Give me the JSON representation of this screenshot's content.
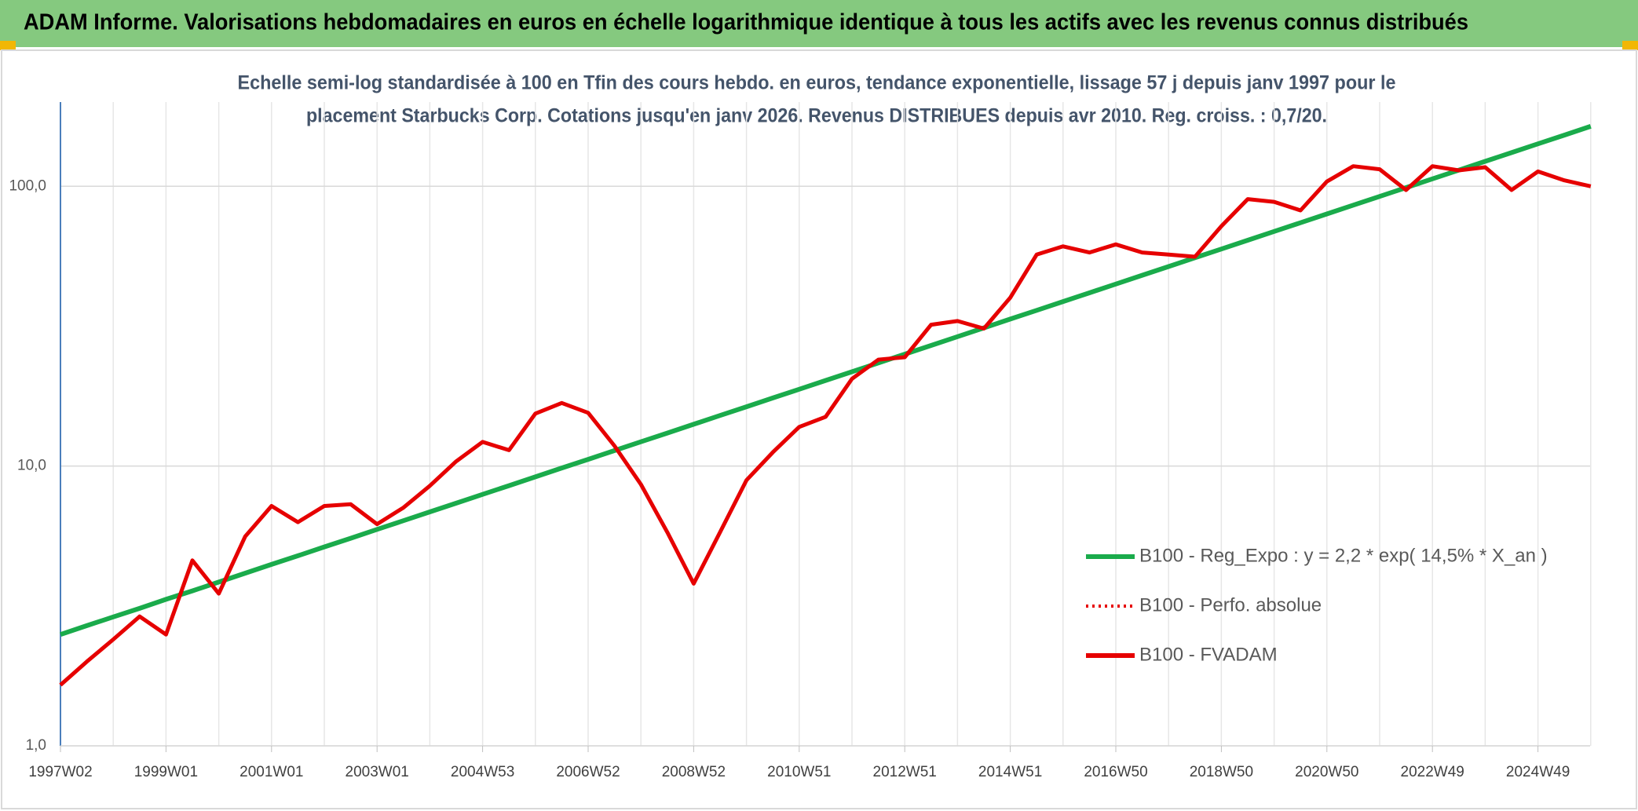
{
  "chart_data": {
    "type": "line",
    "title": "ADAM Informe. Valorisations hebdomadaires en euros en échelle logarithmique identique à tous les actifs avec les revenus connus distribués",
    "subtitle": [
      "Echelle semi-log standardisée à 100 en Tfin des cours hebdo. en euros, tendance exponentielle, lissage 57 j depuis janv 1997 pour le",
      "placement Starbucks Corp. Cotations jusqu'en janv 2026. Revenus DISTRIBUES depuis avr 2010. Reg. croiss. : 0,7/20."
    ],
    "log_scale": true,
    "grid": true,
    "legend": "right",
    "ylim": [
      1,
      200
    ],
    "yticks": [
      {
        "value": 1,
        "label": "1,0"
      },
      {
        "value": 10,
        "label": "10,0"
      },
      {
        "value": 100,
        "label": "100,0"
      }
    ],
    "categories": [
      "1997W02",
      null,
      null,
      null,
      "1999W01",
      null,
      null,
      null,
      "2001W01",
      null,
      null,
      null,
      "2003W01",
      null,
      null,
      null,
      "2004W53",
      null,
      null,
      null,
      "2006W52",
      null,
      null,
      null,
      "2008W52",
      null,
      null,
      null,
      "2010W51",
      null,
      null,
      null,
      "2012W51",
      null,
      null,
      null,
      "2014W51",
      null,
      null,
      null,
      "2016W50",
      null,
      null,
      null,
      "2018W50",
      null,
      null,
      null,
      "2020W50",
      null,
      null,
      null,
      "2022W49",
      null,
      null,
      null,
      "2024W49",
      null,
      null
    ],
    "series": [
      {
        "name": "B100 - Reg_Expo : y = 2,2 * exp( 14,5% *  X_an )",
        "color": "#1aab4b",
        "style": "solid",
        "values": [
          2.5,
          2.69,
          2.89,
          3.1,
          3.34,
          3.58,
          3.85,
          4.14,
          4.45,
          4.78,
          5.14,
          5.52,
          5.94,
          6.38,
          6.86,
          7.37,
          7.92,
          8.51,
          9.15,
          9.84,
          10.57,
          11.36,
          12.21,
          13.12,
          14.11,
          15.16,
          16.29,
          17.51,
          18.82,
          20.23,
          21.74,
          23.37,
          25.12,
          26.99,
          29.01,
          31.18,
          33.52,
          36.02,
          38.72,
          41.61,
          44.73,
          48.07,
          51.67,
          55.53,
          59.68,
          64.15,
          68.95,
          74.1,
          79.65,
          85.6,
          92,
          98.89,
          106.3,
          114.2,
          122.8,
          131.9,
          141.8,
          152.4,
          163.8
        ]
      },
      {
        "name": "B100 - Perfo. absolue",
        "color": "#e60000",
        "style": "dotted",
        "values": [
          1.65,
          2.0,
          2.4,
          2.9,
          2.5,
          4.6,
          3.5,
          5.6,
          7.2,
          6.3,
          7.2,
          7.3,
          6.2,
          7.1,
          8.5,
          10.4,
          12.2,
          11.4,
          15.4,
          16.8,
          15.5,
          11.8,
          8.6,
          5.8,
          3.8,
          5.8,
          8.9,
          11.2,
          13.8,
          15.0,
          20.5,
          24.0,
          24.5,
          32,
          33,
          31,
          40,
          57,
          61,
          58,
          62,
          58,
          57,
          56,
          72,
          90,
          88,
          82,
          104,
          118,
          115,
          97,
          118,
          114,
          117,
          97,
          113,
          105,
          100
        ]
      },
      {
        "name": "B100 - FVADAM",
        "color": "#e60000",
        "style": "solid",
        "values": [
          1.65,
          2.0,
          2.4,
          2.9,
          2.5,
          4.6,
          3.5,
          5.6,
          7.2,
          6.3,
          7.2,
          7.3,
          6.2,
          7.1,
          8.5,
          10.4,
          12.2,
          11.4,
          15.4,
          16.8,
          15.5,
          11.8,
          8.6,
          5.8,
          3.8,
          5.8,
          8.9,
          11.2,
          13.8,
          15.0,
          20.5,
          24.0,
          24.5,
          32,
          33,
          31,
          40,
          57,
          61,
          58,
          62,
          58,
          57,
          56,
          72,
          90,
          88,
          82,
          104,
          118,
          115,
          97,
          118,
          114,
          117,
          97,
          113,
          105,
          100
        ]
      }
    ]
  }
}
